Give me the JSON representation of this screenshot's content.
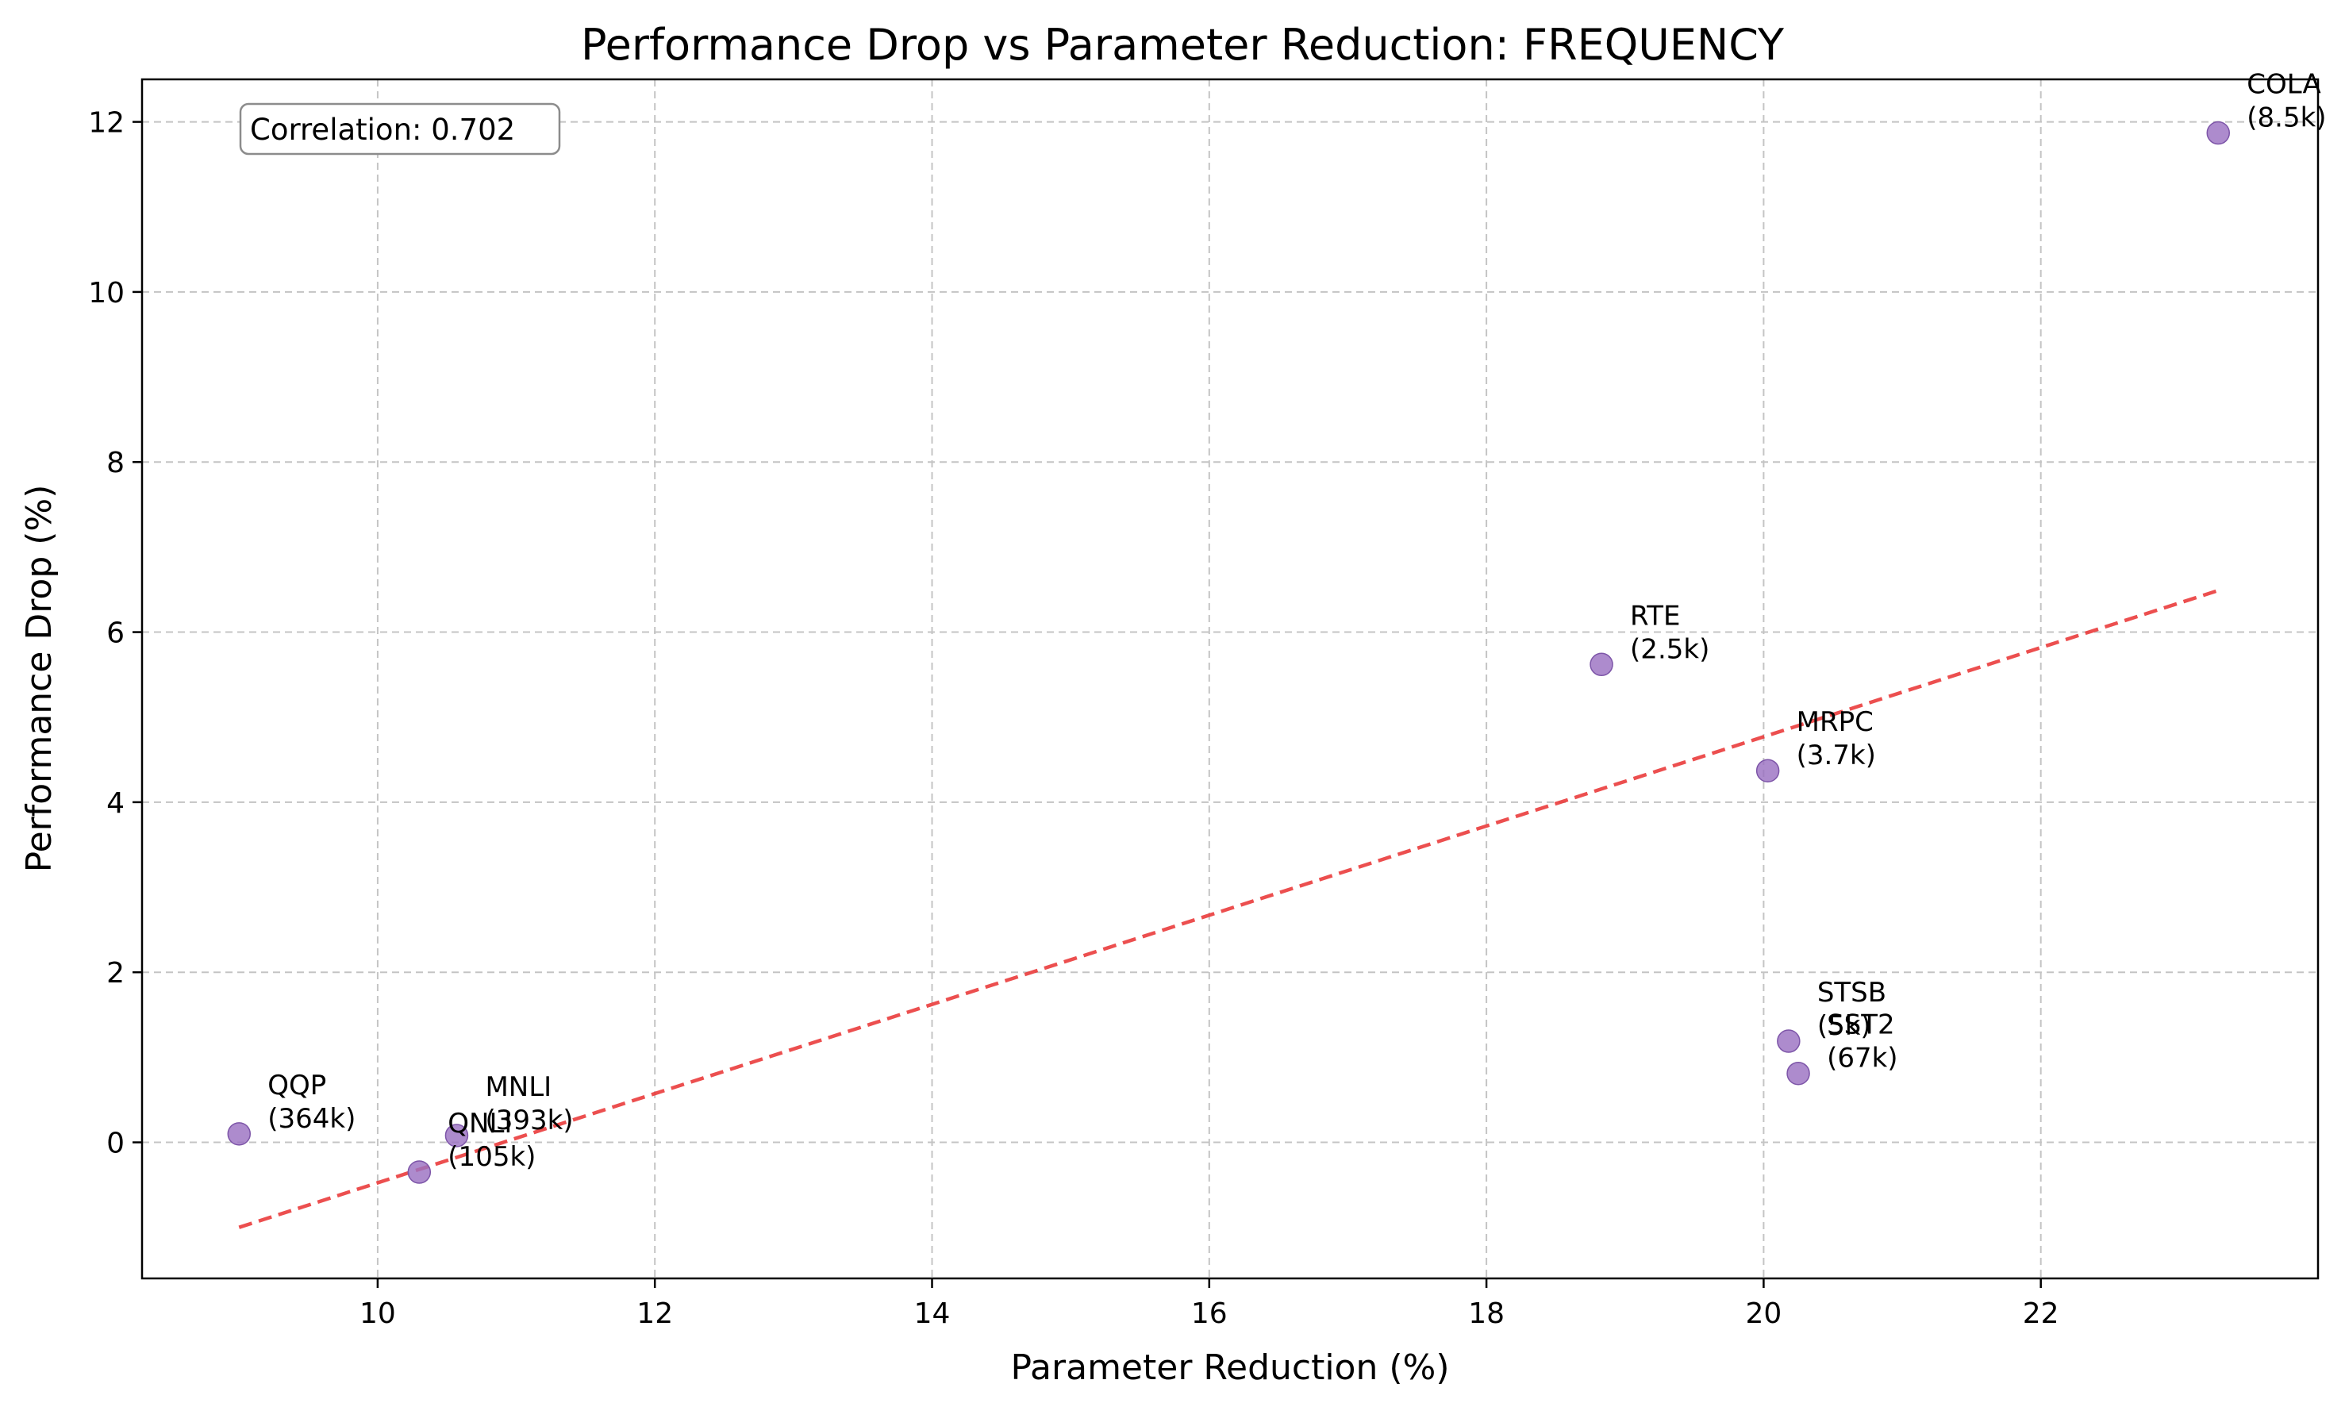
{
  "chart_data": {
    "type": "scatter",
    "title": "Performance Drop vs Parameter Reduction: FREQUENCY",
    "xlabel": "Parameter Reduction (%)",
    "ylabel": "Performance Drop (%)",
    "xlim": [
      8.3,
      24.0
    ],
    "ylim": [
      -1.6,
      12.5
    ],
    "xticks": [
      10,
      12,
      14,
      16,
      18,
      20,
      22
    ],
    "yticks": [
      0,
      2,
      4,
      6,
      8,
      10,
      12
    ],
    "grid": true,
    "marker_color": "#9b72c2",
    "trend_color": "#ea3c3c",
    "annotation": "Correlation: 0.702",
    "trend_line": {
      "x": [
        9.0,
        23.3
      ],
      "y": [
        -1.0,
        6.5
      ]
    },
    "points": [
      {
        "task": "QQP",
        "size": "(364k)",
        "x": 9.0,
        "y": 0.1
      },
      {
        "task": "QNLI",
        "size": "(105k)",
        "x": 10.3,
        "y": -0.35
      },
      {
        "task": "MNLI",
        "size": "(393k)",
        "x": 10.57,
        "y": 0.08
      },
      {
        "task": "RTE",
        "size": "(2.5k)",
        "x": 18.83,
        "y": 5.62
      },
      {
        "task": "MRPC",
        "size": "(3.7k)",
        "x": 20.03,
        "y": 4.37
      },
      {
        "task": "STSB",
        "size": "(5k)",
        "x": 20.18,
        "y": 1.19
      },
      {
        "task": "SST2",
        "size": "(67k)",
        "x": 20.25,
        "y": 0.81
      },
      {
        "task": "COLA",
        "size": "(8.5k)",
        "x": 23.28,
        "y": 11.87
      }
    ]
  }
}
